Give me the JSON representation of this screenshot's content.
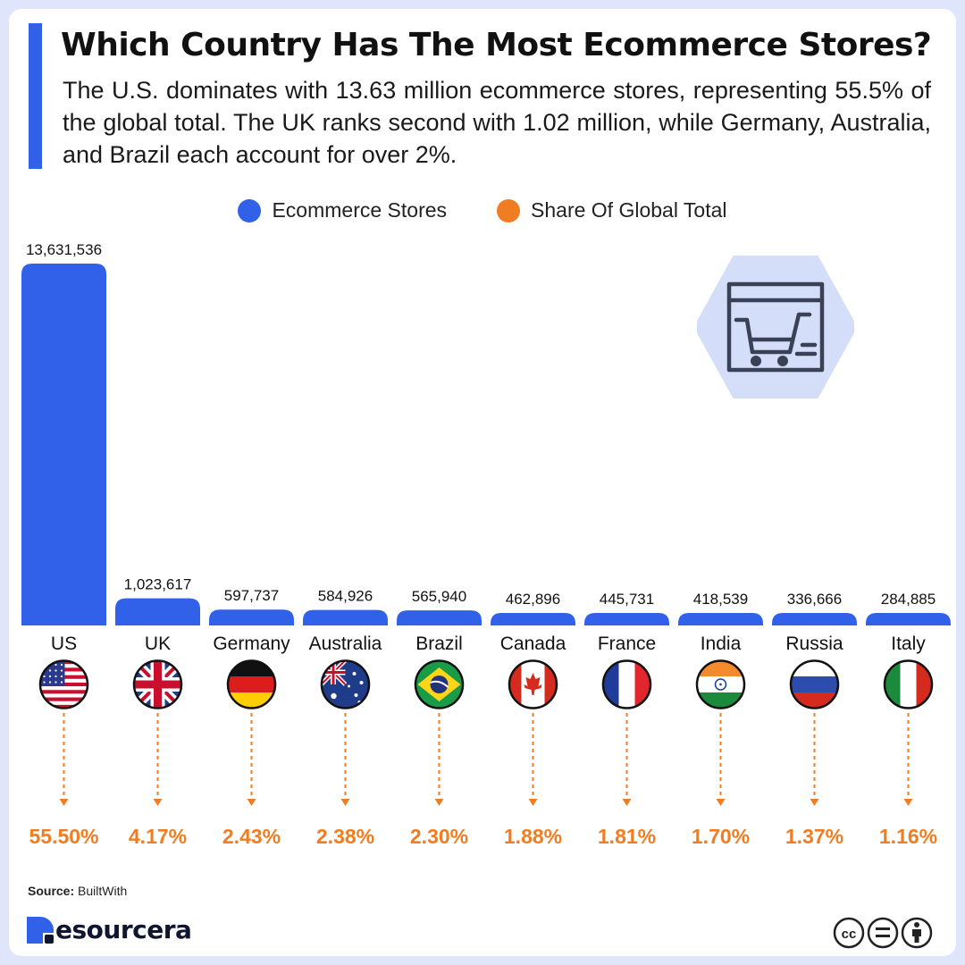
{
  "header": {
    "title": "Which Country Has The Most Ecommerce Stores?",
    "subtitle": "The U.S. dominates with 13.63 million ecommerce stores, representing 55.5% of the global total. The UK ranks second with 1.02 million, while Germany, Australia, and Brazil each account for over 2%."
  },
  "legend": {
    "stores_label": "Ecommerce Stores",
    "share_label": "Share Of Global Total"
  },
  "colors": {
    "bar": "#3161e8",
    "share": "#f07d22",
    "hexagon": "#d5def9",
    "icon_stroke": "#3a4156"
  },
  "icons": {
    "illustration": "shopping-cart-window-icon",
    "license": "creative-commons-by-nd-icon",
    "brand": "resourcera-logo"
  },
  "chart_data": {
    "type": "bar",
    "title": "Which Country Has The Most Ecommerce Stores?",
    "categories": [
      "US",
      "UK",
      "Germany",
      "Australia",
      "Brazil",
      "Canada",
      "France",
      "India",
      "Russia",
      "Italy"
    ],
    "series": [
      {
        "name": "Ecommerce Stores",
        "values": [
          13631536,
          1023617,
          597737,
          584926,
          565940,
          462896,
          445731,
          418539,
          336666,
          284885
        ]
      },
      {
        "name": "Share Of Global Total",
        "values": [
          55.5,
          4.17,
          2.43,
          2.38,
          2.3,
          1.88,
          1.81,
          1.7,
          1.37,
          1.16
        ]
      }
    ],
    "value_labels": [
      "13,631,536",
      "1,023,617",
      "597,737",
      "584,926",
      "565,940",
      "462,896",
      "445,731",
      "418,539",
      "336,666",
      "284,885"
    ],
    "share_labels": [
      "55.50%",
      "4.17%",
      "2.43%",
      "2.38%",
      "2.30%",
      "1.88%",
      "1.81%",
      "1.70%",
      "1.37%",
      "1.16%"
    ],
    "flags": [
      "us-flag-icon",
      "uk-flag-icon",
      "germany-flag-icon",
      "australia-flag-icon",
      "brazil-flag-icon",
      "canada-flag-icon",
      "france-flag-icon",
      "india-flag-icon",
      "russia-flag-icon",
      "italy-flag-icon"
    ],
    "ylim": [
      0,
      13631536
    ],
    "grid": false,
    "legend_position": "top-center"
  },
  "footer": {
    "source_label": "Source:",
    "source_value": "BuiltWith",
    "brand": "esourcera"
  }
}
